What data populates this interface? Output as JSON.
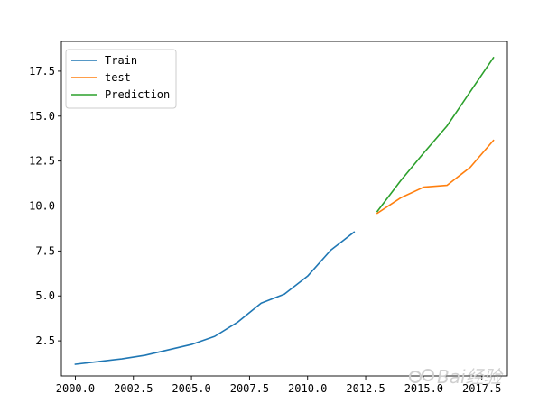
{
  "chart_data": {
    "type": "line",
    "title": "",
    "xlabel": "",
    "ylabel": "",
    "xlim": [
      1999.4,
      2018.6
    ],
    "ylim": [
      0.55,
      19.15
    ],
    "xticks": [
      2000.0,
      2002.5,
      2005.0,
      2007.5,
      2010.0,
      2012.5,
      2015.0,
      2017.5
    ],
    "xtick_labels": [
      "2000.0",
      "2002.5",
      "2005.0",
      "2007.5",
      "2010.0",
      "2012.5",
      "2015.0",
      "2017.5"
    ],
    "yticks": [
      2.5,
      5.0,
      7.5,
      10.0,
      12.5,
      15.0,
      17.5
    ],
    "ytick_labels": [
      "2.5",
      "5.0",
      "7.5",
      "10.0",
      "12.5",
      "15.0",
      "17.5"
    ],
    "grid": false,
    "legend": "upper-left",
    "series": [
      {
        "name": "Train",
        "color": "#1f77b4",
        "x": [
          2000,
          2001,
          2002,
          2003,
          2004,
          2005,
          2006,
          2007,
          2008,
          2009,
          2010,
          2011,
          2012
        ],
        "y": [
          1.2,
          1.35,
          1.5,
          1.7,
          2.0,
          2.3,
          2.75,
          3.55,
          4.6,
          5.1,
          6.1,
          7.55,
          8.55
        ]
      },
      {
        "name": "test",
        "color": "#ff7f0e",
        "x": [
          2013,
          2014,
          2015,
          2016,
          2017,
          2018
        ],
        "y": [
          9.6,
          10.45,
          11.05,
          11.15,
          12.15,
          13.65
        ]
      },
      {
        "name": "Prediction",
        "color": "#2ca02c",
        "x": [
          2013,
          2014,
          2015,
          2016,
          2017,
          2018
        ],
        "y": [
          9.7,
          11.4,
          12.95,
          14.45,
          16.35,
          18.25
        ]
      }
    ]
  },
  "watermark": {
    "text": "Bai经验",
    "color": "#cfcfcf"
  }
}
